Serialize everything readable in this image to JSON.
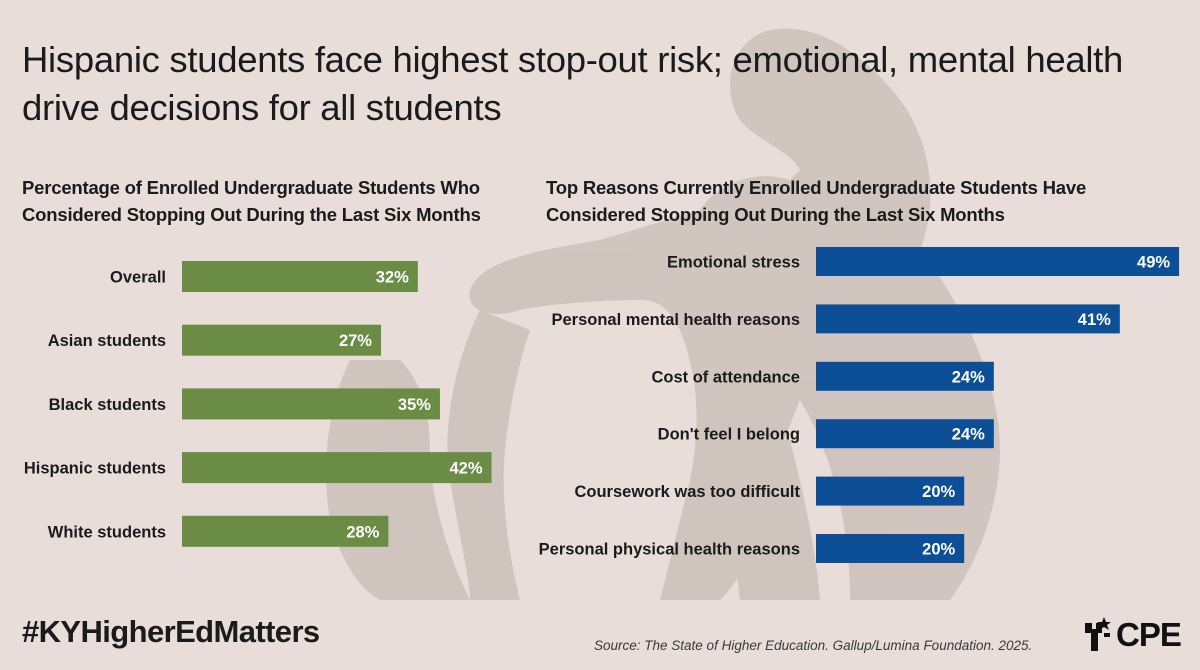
{
  "title": "Hispanic students face highest stop-out risk; emotional, mental health drive decisions for all students",
  "hashtag": "#KYHigherEdMatters",
  "source": "Source: The State of Higher Education. Gallup/Lumina Foundation. 2025.",
  "logo_text": "CPE",
  "colors": {
    "background": "#e8ddd9",
    "left_bars": "#6a8c45",
    "right_bars": "#0d4f97",
    "silhouette": "#c5b7b2"
  },
  "chart_data": [
    {
      "type": "bar",
      "orientation": "horizontal",
      "title": "Percentage of Enrolled Undergraduate Students Who Considered Stopping Out During the Last Six Months",
      "categories": [
        "Overall",
        "Asian students",
        "Black students",
        "Hispanic students",
        "White students"
      ],
      "values": [
        32,
        27,
        35,
        42,
        28
      ],
      "value_labels": [
        "32%",
        "27%",
        "35%",
        "42%",
        "28%"
      ],
      "unit": "%",
      "xlim": [
        0,
        100
      ],
      "grid": false
    },
    {
      "type": "bar",
      "orientation": "horizontal",
      "title": "Top Reasons Currently Enrolled Undergraduate Students Have Considered Stopping Out During the Last Six Months",
      "categories": [
        "Emotional stress",
        "Personal mental health reasons",
        "Cost of attendance",
        "Don't feel I belong",
        "Coursework was too difficult",
        "Personal physical health reasons"
      ],
      "values": [
        49,
        41,
        24,
        24,
        20,
        20
      ],
      "value_labels": [
        "49%",
        "41%",
        "24%",
        "24%",
        "20%",
        "20%"
      ],
      "unit": "%",
      "xlim": [
        0,
        100
      ],
      "grid": false
    }
  ]
}
